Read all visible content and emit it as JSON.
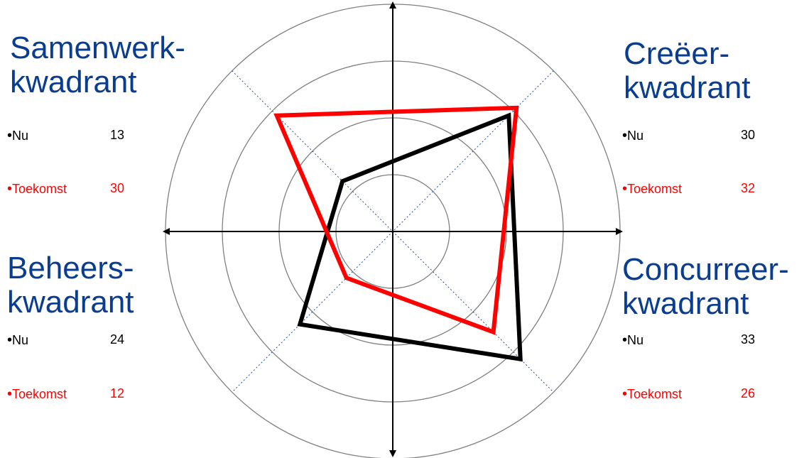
{
  "colors": {
    "nu": "#000000",
    "toekomst": "#ff0000",
    "title": "#0a3d8f",
    "diagonal": "#1f4fa0",
    "ring": "#808080"
  },
  "quadrants": {
    "tl": {
      "title_line1": "Samenwerk-",
      "title_line2": "kwadrant",
      "nu_label": "Nu",
      "nu_value": "13",
      "toekomst_label": "Toekomst",
      "toekomst_value": "30"
    },
    "tr": {
      "title_line1": "Creëer-",
      "title_line2": "kwadrant",
      "nu_label": "Nu",
      "nu_value": "30",
      "toekomst_label": "Toekomst",
      "toekomst_value": "32"
    },
    "bl": {
      "title_line1": "Beheers-",
      "title_line2": "kwadrant",
      "nu_label": "Nu",
      "nu_value": "24",
      "toekomst_label": "Toekomst",
      "toekomst_value": "12"
    },
    "br": {
      "title_line1": "Concurreer-",
      "title_line2": "kwadrant",
      "nu_label": "Nu",
      "nu_value": "33",
      "toekomst_label": "Toekomst",
      "toekomst_value": "26"
    }
  },
  "chart_data": {
    "type": "radar",
    "axes": [
      "Creëer",
      "Concurreer",
      "Beheers",
      "Samenwerk"
    ],
    "rmax": 40,
    "rings": 4,
    "series": [
      {
        "name": "Nu",
        "color": "#000000",
        "values": [
          30,
          33,
          24,
          13
        ]
      },
      {
        "name": "Toekomst",
        "color": "#ff0000",
        "values": [
          32,
          26,
          12,
          30
        ]
      }
    ]
  }
}
